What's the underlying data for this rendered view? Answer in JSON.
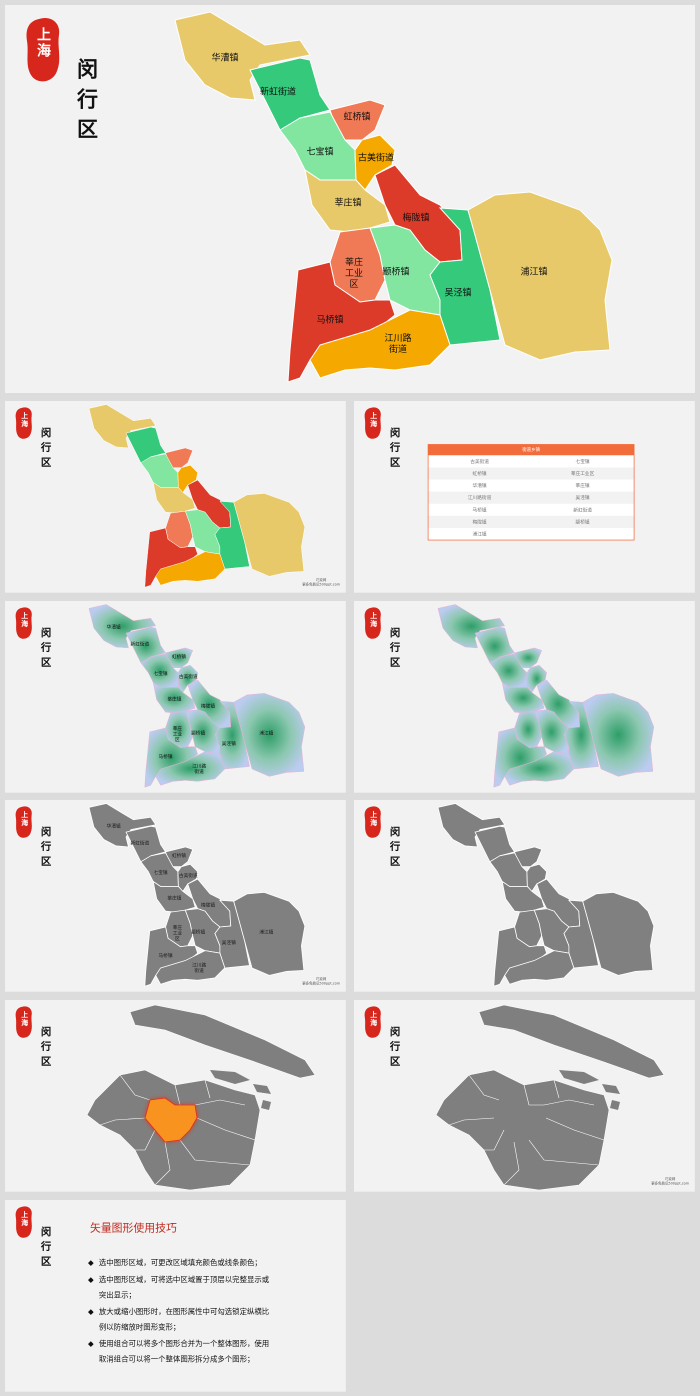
{
  "logo": "上海",
  "title": "闵行区",
  "towns": [
    "华漕镇",
    "新虹街道",
    "虹桥镇",
    "七宝镇",
    "古美街道",
    "莘庄镇",
    "梅陇镇",
    "莘庄工业区",
    "颛桥镇",
    "吴泾镇",
    "浦江镇",
    "马桥镇",
    "江川路街道"
  ],
  "table": {
    "header": "街道乡镇",
    "rows": [
      [
        "古美街道",
        "七宝镇"
      ],
      [
        "虹桥镇",
        "莘庄工业区"
      ],
      [
        "华漕镇",
        "莘庄镇"
      ],
      [
        "江川路街道",
        "吴泾镇"
      ],
      [
        "马桥镇",
        "新虹街道"
      ],
      [
        "梅陇镇",
        "颛桥镇"
      ],
      [
        "浦江镇"
      ]
    ]
  },
  "watermark": [
    "巧克网",
    "更多免费见500ppt.com"
  ],
  "tips": {
    "title": "矢量图形使用技巧",
    "items": [
      "选中图形区域，可更改区域填充颜色或线条颜色；",
      "选中图形区域，可将选中区域置于顶层以完整显示或突出显示；",
      "放大或缩小图形时，在图形属性中可勾选锁定纵横比例以防缩放时图形变形；",
      "使用组合可以将多个图形合并为一个整体图形，使用取消组合可以将一个整体图形拆分成多个图形；"
    ]
  }
}
